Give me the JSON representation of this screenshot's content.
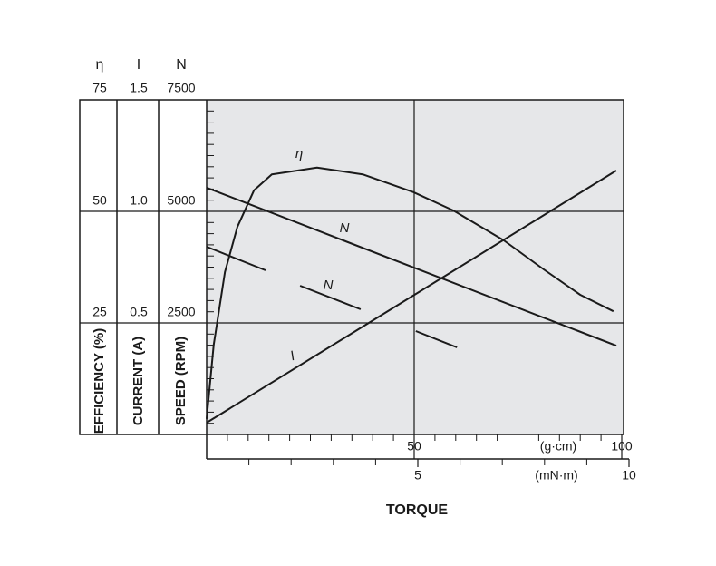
{
  "chart_data": {
    "type": "line",
    "axes": [
      {
        "symbol": "η",
        "label": "EFFICIENCY (%)",
        "ylim": [
          0,
          75
        ],
        "yticks": [
          25,
          50,
          75
        ]
      },
      {
        "symbol": "I",
        "label": "CURRENT (A)",
        "ylim": [
          0,
          1.5
        ],
        "yticks": [
          0.5,
          {
            "value": 1,
            "label": "1.0"
          },
          1.5
        ]
      },
      {
        "symbol": "N",
        "label": "SPEED (RPM)",
        "ylim": [
          0,
          7500
        ],
        "yticks": [
          2500,
          5000,
          7500
        ],
        "minorticks": [
          250,
          500,
          750,
          1000,
          1250,
          1500,
          1750,
          2000,
          2250,
          2750,
          3000,
          3250,
          3500,
          3750,
          4000,
          4250,
          4500,
          4750,
          5250,
          5500,
          5750,
          6000,
          6250,
          6500,
          6750,
          7000,
          7250
        ]
      }
    ],
    "xlabel": "TORQUE",
    "xunit": "(g·cm)",
    "xlim": [
      0,
      100
    ],
    "xticks": [
      50,
      100
    ],
    "xminorticks": [
      5,
      10,
      15,
      20,
      25,
      30,
      35,
      40,
      45,
      55,
      60,
      65,
      70,
      75,
      80,
      85,
      90,
      95
    ],
    "x2unit": "(mN·m)",
    "x2lim": [
      0,
      10
    ],
    "x2ticks": [
      5,
      10
    ],
    "x2minorticks": [
      1,
      2,
      3,
      4,
      6,
      7,
      8,
      9
    ],
    "series": [
      {
        "name": "η",
        "axis": 0,
        "color": "#1a1a1a",
        "x": [
          0,
          1.7,
          4.4,
          7.4,
          11.4,
          15.7,
          26.6,
          37.6,
          49.8,
          59.4,
          71.6,
          81.2,
          90,
          98
        ],
        "values": [
          3.5,
          20.1,
          36.4,
          46.5,
          54.7,
          58.3,
          59.8,
          58.3,
          54.3,
          50.2,
          43.5,
          37.0,
          31.3,
          27.6
        ]
      },
      {
        "name": "N",
        "axis": 2,
        "color": "#1a1a1a",
        "x": [
          0,
          98.7
        ],
        "values": [
          5530,
          1990
        ]
      },
      {
        "name": "N",
        "axis": 2,
        "color": "#1a1a1a",
        "x": [
          0,
          14.2,
          18,
          22.5,
          37.1,
          44,
          50.4,
          60.3
        ],
        "values": [
          4207,
          3679,
          null,
          3333,
          2805,
          null,
          2317,
          1951
        ]
      },
      {
        "name": "I",
        "axis": 1,
        "color": "#1a1a1a",
        "x": [
          0,
          98.7
        ],
        "values": [
          0.053,
          1.183
        ]
      }
    ]
  }
}
